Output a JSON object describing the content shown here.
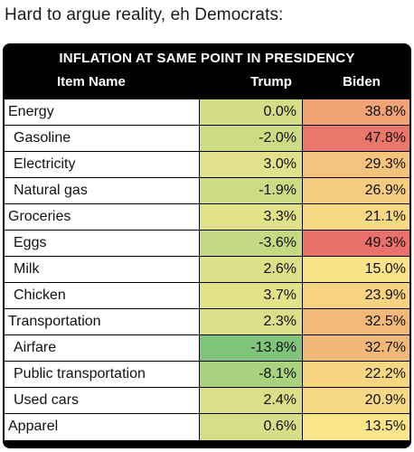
{
  "post": {
    "caption": "Hard to argue reality, eh Democrats:"
  },
  "table": {
    "title": "INFLATION AT SAME POINT IN PRESIDENCY",
    "columns": {
      "name": "Item Name",
      "trump": "Trump",
      "biden": "Biden"
    },
    "rows": [
      {
        "name": "Energy",
        "trump": "0.0%",
        "biden": "38.8%",
        "trump_color": "#d4de86",
        "biden_color": "#f0a374"
      },
      {
        "name": "Gasoline",
        "trump": "-2.0%",
        "biden": "47.8%",
        "trump_color": "#cddc84",
        "biden_color": "#e9776c"
      },
      {
        "name": "Electricity",
        "trump": "3.0%",
        "biden": "29.3%",
        "trump_color": "#e0e18a",
        "biden_color": "#f4c37d"
      },
      {
        "name": "Natural gas",
        "trump": "-1.9%",
        "biden": "26.9%",
        "trump_color": "#cddc84",
        "biden_color": "#f5cc80"
      },
      {
        "name": "Groceries",
        "trump": "3.3%",
        "biden": "21.1%",
        "trump_color": "#e1e18a",
        "biden_color": "#f7d884"
      },
      {
        "name": "Eggs",
        "trump": "-3.6%",
        "biden": "49.3%",
        "trump_color": "#c4d981",
        "biden_color": "#e8716b"
      },
      {
        "name": "Milk",
        "trump": "2.6%",
        "biden": "15.0%",
        "trump_color": "#dde089",
        "biden_color": "#fae388"
      },
      {
        "name": "Chicken",
        "trump": "3.7%",
        "biden": "23.9%",
        "trump_color": "#e3e28b",
        "biden_color": "#f6d282"
      },
      {
        "name": "Transportation",
        "trump": "2.3%",
        "biden": "32.5%",
        "trump_color": "#dcdf88",
        "biden_color": "#f2b97b"
      },
      {
        "name": "Airfare",
        "trump": "-13.8%",
        "biden": "32.7%",
        "trump_color": "#7fc47a",
        "biden_color": "#f2b87a"
      },
      {
        "name": "Public transportation",
        "trump": "-8.1%",
        "biden": "22.2%",
        "trump_color": "#a9d17e",
        "biden_color": "#f6d683"
      },
      {
        "name": "Used cars",
        "trump": "2.4%",
        "biden": "20.9%",
        "trump_color": "#dcdf88",
        "biden_color": "#f7d884"
      },
      {
        "name": "Apparel",
        "trump": "0.6%",
        "biden": "13.5%",
        "trump_color": "#d6de87",
        "biden_color": "#fbe58a"
      }
    ]
  }
}
